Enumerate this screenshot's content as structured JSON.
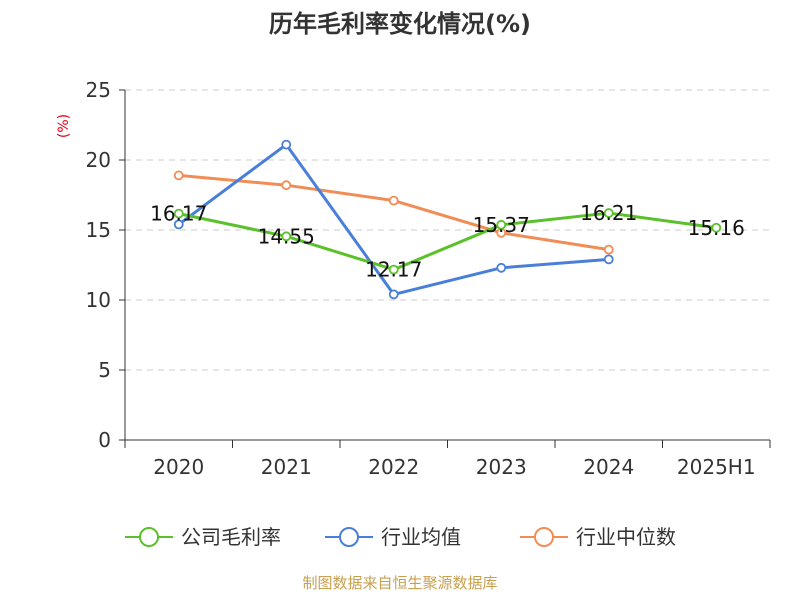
{
  "chart_data": {
    "type": "line",
    "title": "历年毛利率变化情况(%)",
    "unit_label": "(%)",
    "categories": [
      "2020",
      "2021",
      "2022",
      "2023",
      "2024",
      "2025H1"
    ],
    "ylim": [
      0,
      25
    ],
    "yticks": [
      0,
      5,
      10,
      15,
      20,
      25
    ],
    "grid": true,
    "legend_position": "bottom",
    "series": [
      {
        "name": "公司毛利率",
        "color": "#5ac12a",
        "values": [
          16.17,
          14.55,
          12.17,
          15.37,
          16.21,
          15.16
        ],
        "labels": [
          "16.17",
          "14.55",
          "12.17",
          "15.37",
          "16.21",
          "15.16"
        ]
      },
      {
        "name": "行业均值",
        "color": "#4a7fd9",
        "values": [
          15.4,
          21.1,
          10.4,
          12.3,
          12.9,
          null
        ]
      },
      {
        "name": "行业中位数",
        "color": "#f28c55",
        "values": [
          18.9,
          18.2,
          17.1,
          14.8,
          13.6,
          null
        ]
      }
    ],
    "source": "制图数据来自恒生聚源数据库"
  }
}
